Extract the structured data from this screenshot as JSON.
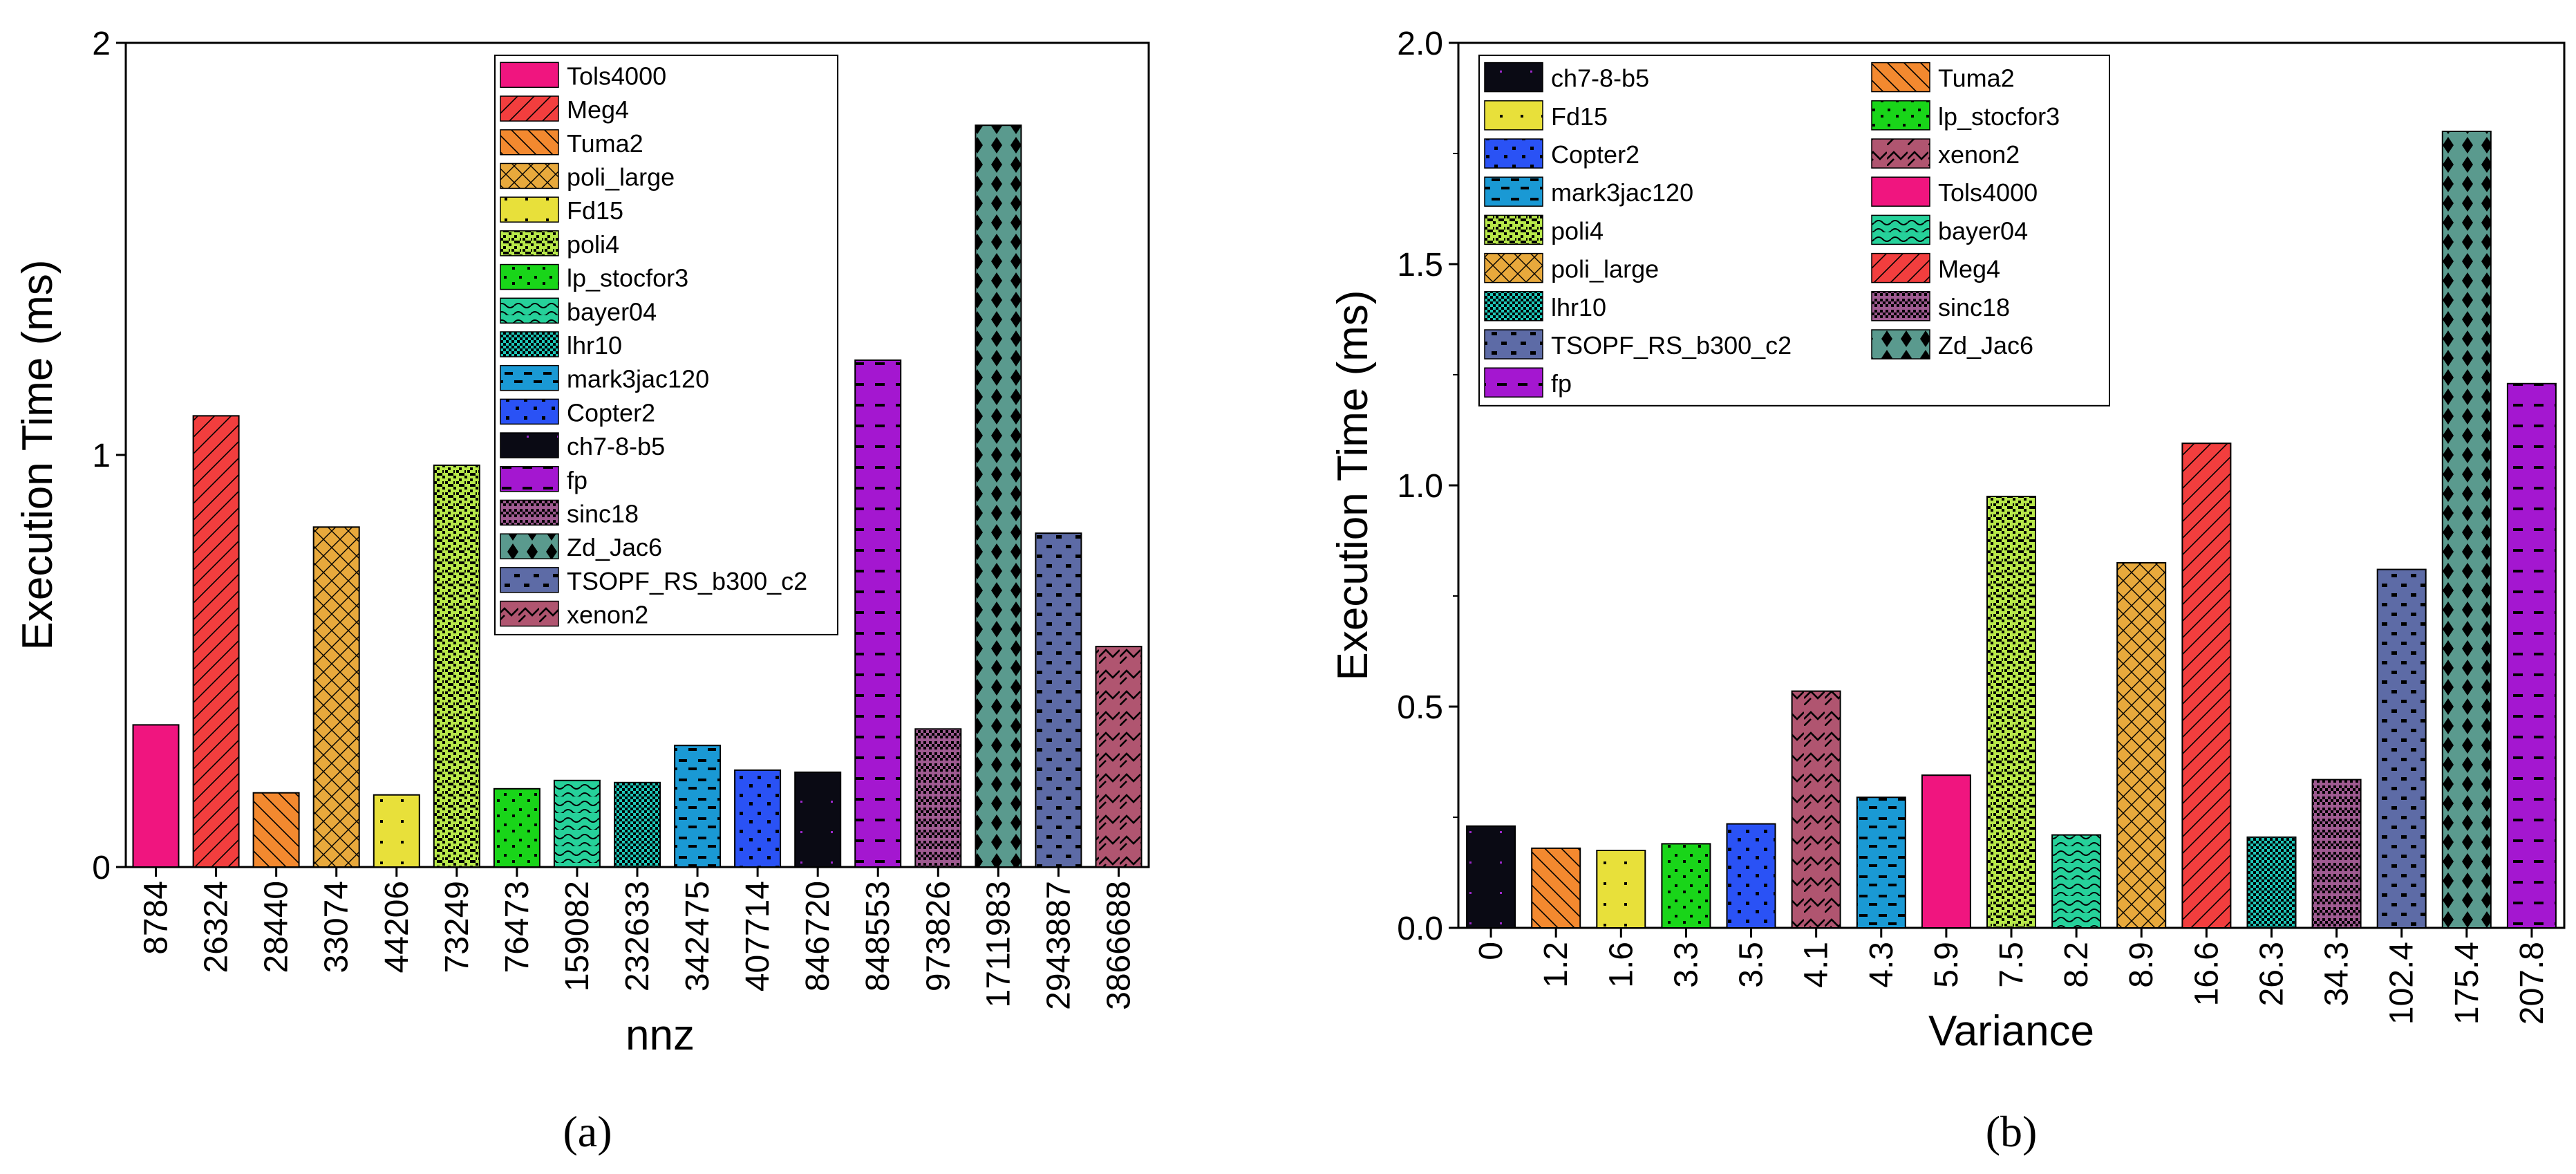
{
  "colors": {
    "Tols4000": "#f0157f",
    "Meg4": "#f23e3e",
    "Tuma2": "#f3892f",
    "poli_large": "#e8a93c",
    "Fd15": "#e8e03a",
    "poli4": "#b8e84a",
    "lp_stocfor3": "#19d519",
    "bayer04": "#26d19a",
    "lhr10": "#1ec7b8",
    "mark3jac120": "#1a99d4",
    "Copter2": "#2a52f5",
    "ch7-8-b5": "#0a0a14",
    "fp": "#a417d0",
    "sinc18": "#9e5a90",
    "Zd_Jac6": "#5a9a8e",
    "TSOPF_RS_b300_c2": "#5d6ba6",
    "xenon2": "#b05570"
  },
  "chart_data": [
    {
      "type": "bar",
      "caption": "(a)",
      "title": "",
      "xlabel": "nnz",
      "ylabel": "Execution Time (ms)",
      "ylim": [
        0,
        2
      ],
      "yticks": [
        "0",
        "1",
        "2"
      ],
      "categories": [
        "8784",
        "26324",
        "28440",
        "33074",
        "44206",
        "73249",
        "76473",
        "159082",
        "232633",
        "342475",
        "407714",
        "846720",
        "848553",
        "973826",
        "1711983",
        "2943887",
        "3866688"
      ],
      "series_names": [
        "Tols4000",
        "Meg4",
        "Tuma2",
        "poli_large",
        "Fd15",
        "poli4",
        "lp_stocfor3",
        "bayer04",
        "lhr10",
        "mark3jac120",
        "Copter2",
        "ch7-8-b5",
        "fp",
        "sinc18",
        "Zd_Jac6",
        "TSOPF_RS_b300_c2",
        "xenon2"
      ],
      "values": [
        0.345,
        1.095,
        0.18,
        0.825,
        0.175,
        0.975,
        0.19,
        0.21,
        0.205,
        0.295,
        0.235,
        0.23,
        1.23,
        0.335,
        1.8,
        0.81,
        0.535
      ],
      "legend": {
        "placement": "top-center",
        "columns": 1,
        "entries": [
          "Tols4000",
          "Meg4",
          "Tuma2",
          "poli_large",
          "Fd15",
          "poli4",
          "lp_stocfor3",
          "bayer04",
          "lhr10",
          "mark3jac120",
          "Copter2",
          "ch7-8-b5",
          "fp",
          "sinc18",
          "Zd_Jac6",
          "TSOPF_RS_b300_c2",
          "xenon2"
        ]
      }
    },
    {
      "type": "bar",
      "caption": "(b)",
      "title": "",
      "xlabel": "Variance",
      "ylabel": "Execution Time (ms)",
      "ylim": [
        0,
        2
      ],
      "yticks": [
        "0.0",
        "0.5",
        "1.0",
        "1.5",
        "2.0"
      ],
      "categories": [
        "0",
        "1.2",
        "1.6",
        "3.3",
        "3.5",
        "4.1",
        "4.3",
        "5.9",
        "7.5",
        "8.2",
        "8.9",
        "16.6",
        "26.3",
        "34.3",
        "102.4",
        "175.4",
        "207.8"
      ],
      "series_names": [
        "ch7-8-b5",
        "Tuma2",
        "Fd15",
        "lp_stocfor3",
        "Copter2",
        "xenon2",
        "mark3jac120",
        "Tols4000",
        "poli4",
        "bayer04",
        "poli_large",
        "Meg4",
        "lhr10",
        "sinc18",
        "TSOPF_RS_b300_c2",
        "Zd_Jac6",
        "fp"
      ],
      "values": [
        0.23,
        0.18,
        0.175,
        0.19,
        0.235,
        0.535,
        0.295,
        0.345,
        0.975,
        0.21,
        0.825,
        1.095,
        0.205,
        0.335,
        0.81,
        1.8,
        1.23
      ],
      "legend": {
        "placement": "top-left",
        "columns": 2,
        "entries": [
          "ch7-8-b5",
          "Tuma2",
          "Fd15",
          "lp_stocfor3",
          "Copter2",
          "xenon2",
          "mark3jac120",
          "Tols4000",
          "poli4",
          "bayer04",
          "poli_large",
          "Meg4",
          "lhr10",
          "sinc18",
          "TSOPF_RS_b300_c2",
          "Zd_Jac6",
          "fp"
        ]
      }
    }
  ]
}
